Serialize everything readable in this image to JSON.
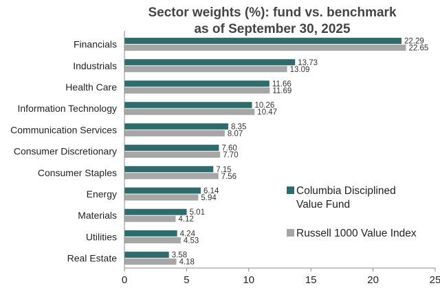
{
  "chart_data": {
    "type": "bar",
    "orientation": "horizontal",
    "title_lines": [
      "Sector weights (%): fund vs. benchmark",
      "as of September 30, 2025"
    ],
    "categories": [
      "Financials",
      "Industrials",
      "Health Care",
      "Information Technology",
      "Communication Services",
      "Consumer Discretionary",
      "Consumer Staples",
      "Energy",
      "Materials",
      "Utilities",
      "Real Estate"
    ],
    "series": [
      {
        "name_lines": [
          "Columbia Disciplined",
          "Value Fund"
        ],
        "color": "#2e6b6b",
        "values": [
          22.29,
          13.73,
          11.66,
          10.26,
          8.35,
          7.6,
          7.15,
          6.14,
          5.01,
          4.24,
          3.58
        ],
        "labels": [
          "22.29",
          "13.73",
          "11.66",
          "10.26",
          "8.35",
          "7.60",
          "7.15",
          "6.14",
          "5.01",
          "4.24",
          "3.58"
        ]
      },
      {
        "name_lines": [
          "Russell 1000 Value Index"
        ],
        "color": "#a6a6a6",
        "values": [
          22.65,
          13.09,
          11.69,
          10.47,
          8.07,
          7.7,
          7.56,
          5.94,
          4.12,
          4.53,
          4.18
        ],
        "labels": [
          "22.65",
          "13.09",
          "11.69",
          "10.47",
          "8.07",
          "7.70",
          "7.56",
          "5.94",
          "4.12",
          "4.53",
          "4.18"
        ]
      }
    ],
    "xlim": [
      0,
      25
    ],
    "xticks": [
      0,
      5,
      10,
      15,
      20,
      25
    ],
    "xtick_labels": [
      "0",
      "5",
      "10",
      "15",
      "20",
      "25"
    ],
    "grid": false,
    "legend_position": "lower-right"
  }
}
